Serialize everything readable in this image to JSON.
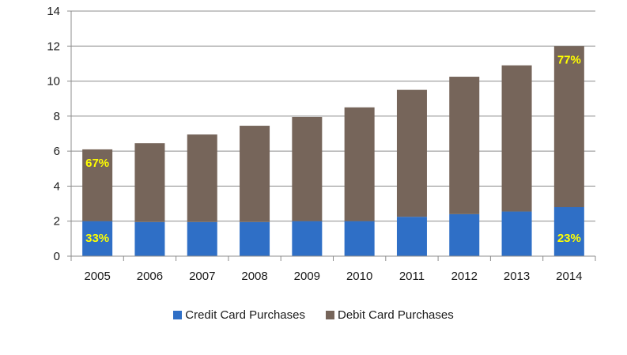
{
  "chart_data": {
    "type": "bar",
    "stacked": true,
    "categories": [
      "2005",
      "2006",
      "2007",
      "2008",
      "2009",
      "2010",
      "2011",
      "2012",
      "2013",
      "2014"
    ],
    "series": [
      {
        "name": "Credit Card Purchases",
        "color": "#2f6fc6",
        "values": [
          2.0,
          1.95,
          1.95,
          1.95,
          2.0,
          2.0,
          2.25,
          2.4,
          2.55,
          2.8
        ]
      },
      {
        "name": "Debit Card Purchases",
        "color": "#76655a",
        "values": [
          4.1,
          4.5,
          5.0,
          5.5,
          5.95,
          6.5,
          7.25,
          7.85,
          8.35,
          9.2
        ]
      }
    ],
    "ylim": [
      0,
      14
    ],
    "yticks": [
      "0",
      "2",
      "4",
      "6",
      "8",
      "10",
      "12",
      "14"
    ],
    "grid": true,
    "legend_position": "bottom",
    "annotations": [
      {
        "category": "2005",
        "series": "Debit Card Purchases",
        "text": "67%"
      },
      {
        "category": "2005",
        "series": "Credit Card Purchases",
        "text": "33%"
      },
      {
        "category": "2014",
        "series": "Debit Card Purchases",
        "text": "77%"
      },
      {
        "category": "2014",
        "series": "Credit Card Purchases",
        "text": "23%"
      }
    ],
    "annotation_color": "#ffff00"
  }
}
